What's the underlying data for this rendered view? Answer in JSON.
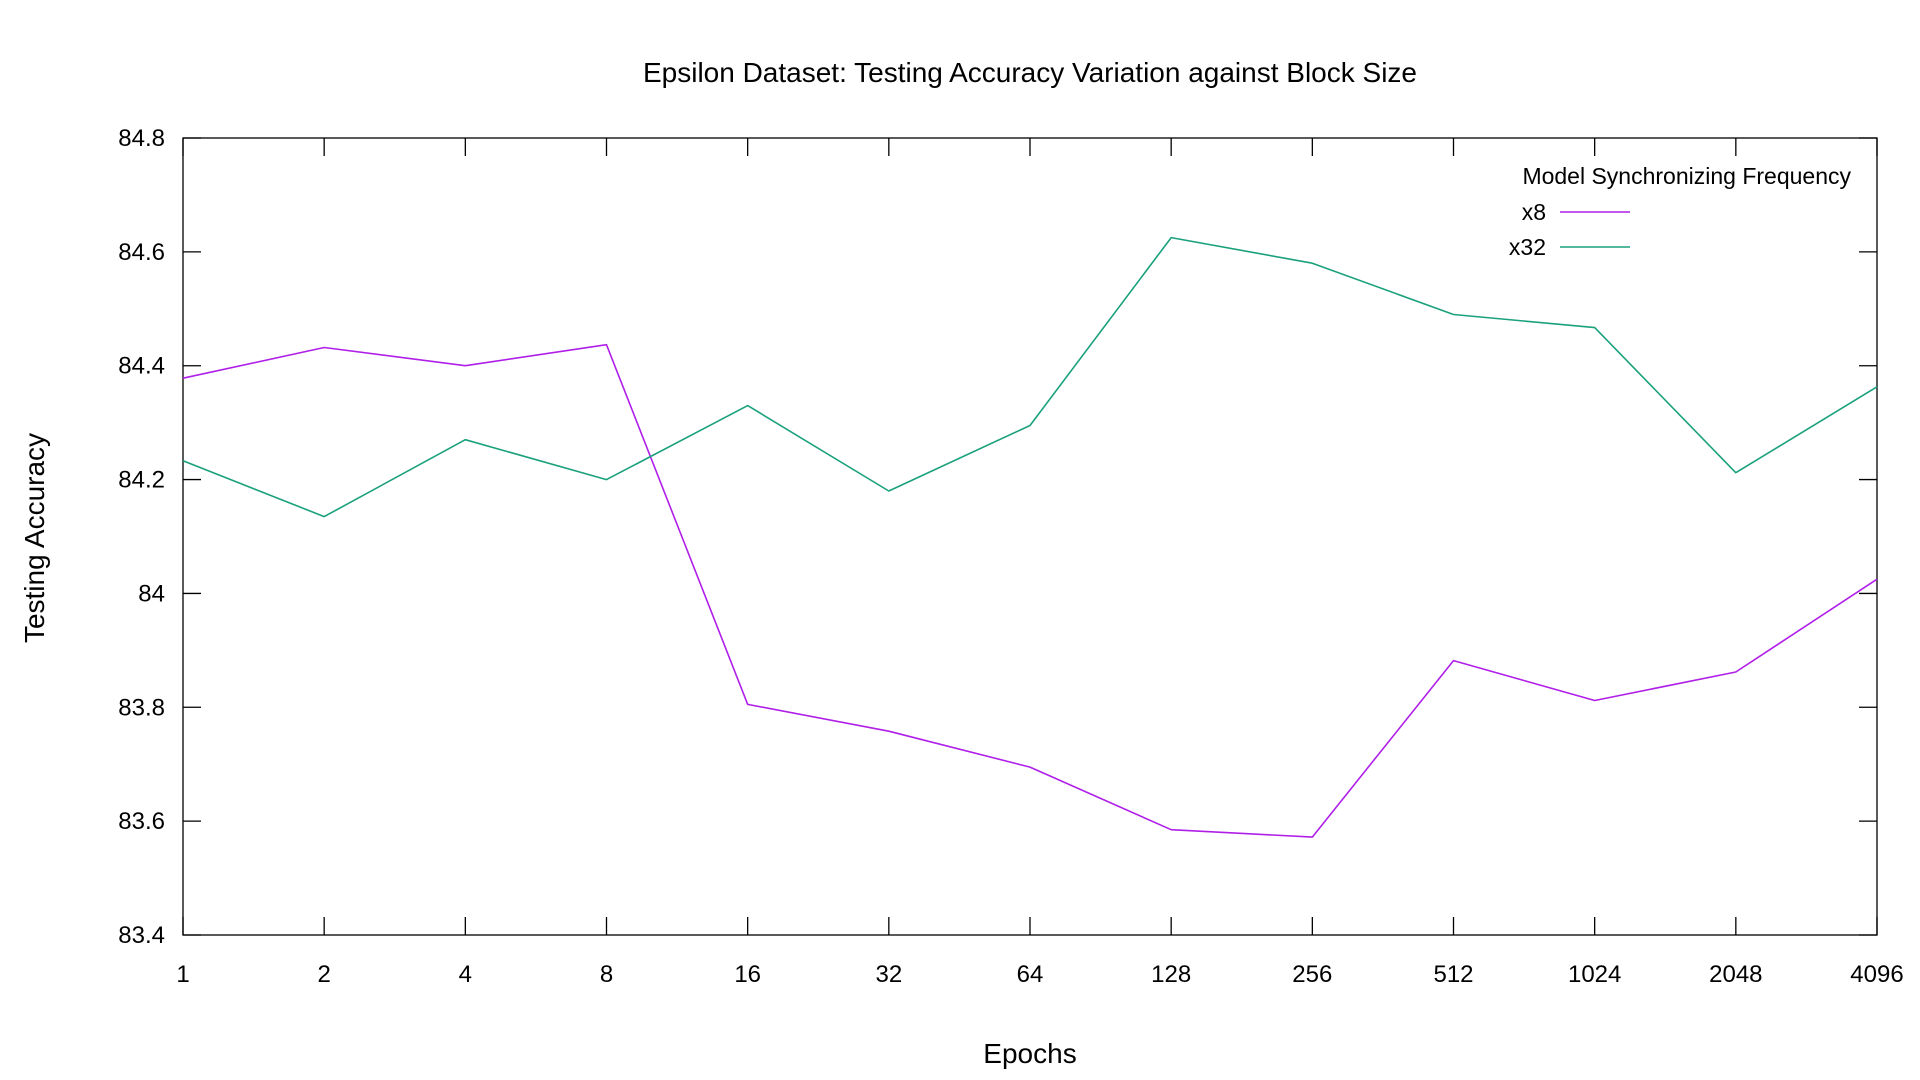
{
  "chart_data": {
    "type": "line",
    "title": "Epsilon Dataset: Testing  Accuracy Variation against Block Size",
    "xlabel": "Epochs",
    "ylabel": "Testing Accuracy",
    "categories": [
      "1",
      "2",
      "4",
      "8",
      "16",
      "32",
      "64",
      "128",
      "256",
      "512",
      "1024",
      "2048",
      "4096"
    ],
    "ylim": [
      83.4,
      84.8
    ],
    "yticks": [
      "83.4",
      "83.6",
      "83.8",
      "84",
      "84.2",
      "84.4",
      "84.6",
      "84.8"
    ],
    "grid": false,
    "legend_title": "Model Synchronizing Frequency",
    "legend_position": "top-right",
    "series": [
      {
        "name": "x8",
        "color": "#b01fe8",
        "values": [
          84.378,
          84.432,
          84.4,
          84.437,
          83.805,
          83.758,
          83.695,
          83.585,
          83.572,
          83.882,
          83.812,
          83.862,
          84.025
        ]
      },
      {
        "name": "x32",
        "color": "#1aa17c",
        "values": [
          84.233,
          84.135,
          84.27,
          84.2,
          84.33,
          84.18,
          84.295,
          84.625,
          84.58,
          84.49,
          84.467,
          84.212,
          84.363
        ]
      }
    ]
  }
}
